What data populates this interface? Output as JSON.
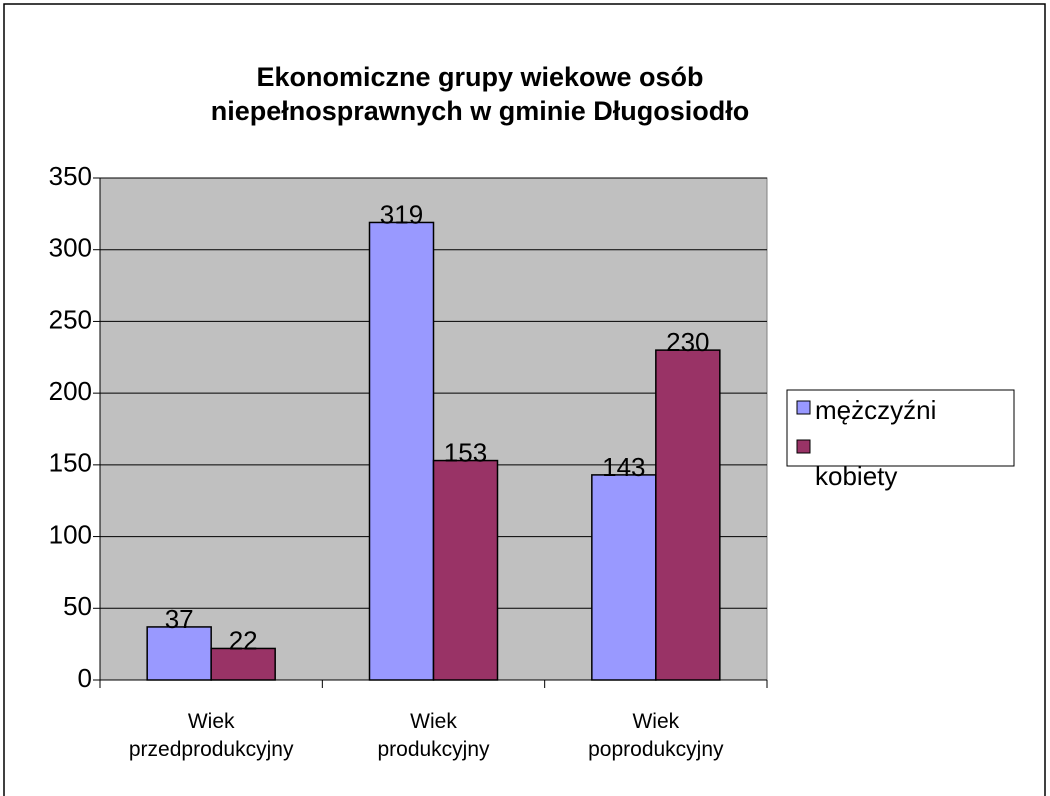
{
  "chart_data": {
    "type": "bar",
    "title": [
      "Ekonomiczne grupy wiekowe osób",
      "niepełnosprawnych w gminie Długosiodło"
    ],
    "categories": [
      "Wiek przedprodukcyjny",
      "Wiek produkcyjny",
      "Wiek poprodukcyjny"
    ],
    "series": [
      {
        "name": "mężczyźni",
        "color": "#9999ff",
        "values": [
          37,
          319,
          143
        ]
      },
      {
        "name": "kobiety",
        "color": "#993366",
        "values": [
          22,
          153,
          230
        ]
      }
    ],
    "ylim": [
      0,
      350
    ],
    "yticks": [
      0,
      50,
      100,
      150,
      200,
      250,
      300,
      350
    ],
    "grid": true
  }
}
